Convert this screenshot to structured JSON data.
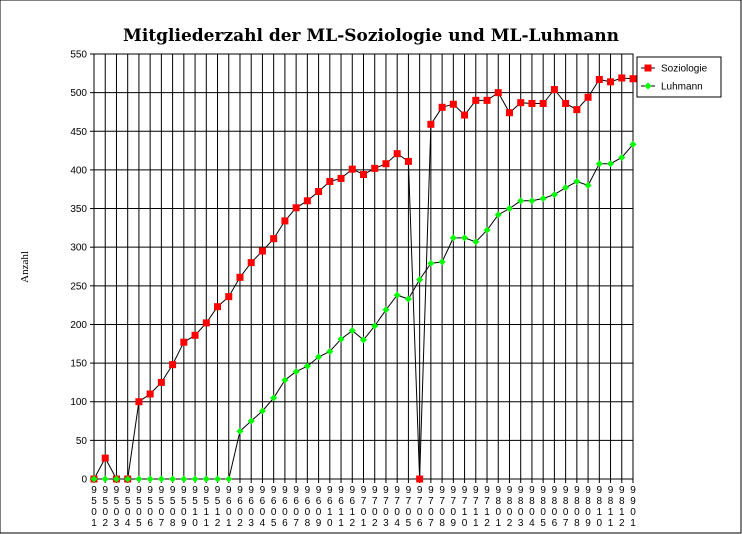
{
  "chart_data": {
    "type": "line",
    "title": "Mitgliederzahl der ML-Soziologie und ML-Luhmann",
    "xlabel": "",
    "ylabel": "Anzahl",
    "ylim": [
      0,
      550
    ],
    "yticks": [
      0,
      50,
      100,
      150,
      200,
      250,
      300,
      350,
      400,
      450,
      500,
      550
    ],
    "grid": true,
    "legend_position": "top-right",
    "categories": [
      "9501",
      "9502",
      "9503",
      "9504",
      "9505",
      "9506",
      "9507",
      "9508",
      "9509",
      "9510",
      "9511",
      "9512",
      "9601",
      "9602",
      "9603",
      "9604",
      "9605",
      "9606",
      "9607",
      "9608",
      "9609",
      "9610",
      "9611",
      "9612",
      "9701",
      "9702",
      "9703",
      "9704",
      "9705",
      "9706",
      "9707",
      "9708",
      "9709",
      "9710",
      "9711",
      "9712",
      "9801",
      "9802",
      "9803",
      "9804",
      "9805",
      "9806",
      "9807",
      "9808",
      "9809",
      "9810",
      "9811",
      "9812",
      "9901"
    ],
    "series": [
      {
        "name": "Soziologie",
        "color": "#ff0000",
        "marker": "square",
        "values": [
          0,
          27,
          0,
          0,
          100,
          110,
          125,
          148,
          177,
          186,
          202,
          223,
          236,
          261,
          280,
          295,
          311,
          334,
          351,
          360,
          372,
          385,
          389,
          401,
          394,
          402,
          408,
          421,
          411,
          0,
          459,
          481,
          485,
          471,
          490,
          490,
          500,
          474,
          487,
          486,
          486,
          504,
          486,
          478,
          494,
          517,
          514,
          519,
          518
        ]
      },
      {
        "name": "Luhmann",
        "color": "#00ff00",
        "marker": "diamond",
        "values": [
          0,
          0,
          0,
          0,
          0,
          0,
          0,
          0,
          0,
          0,
          0,
          0,
          0,
          62,
          75,
          88,
          105,
          128,
          139,
          146,
          158,
          165,
          181,
          192,
          180,
          198,
          219,
          238,
          233,
          258,
          279,
          281,
          312,
          312,
          307,
          322,
          342,
          350,
          360,
          360,
          363,
          368,
          377,
          385,
          380,
          408,
          408,
          416,
          433
        ]
      }
    ]
  }
}
